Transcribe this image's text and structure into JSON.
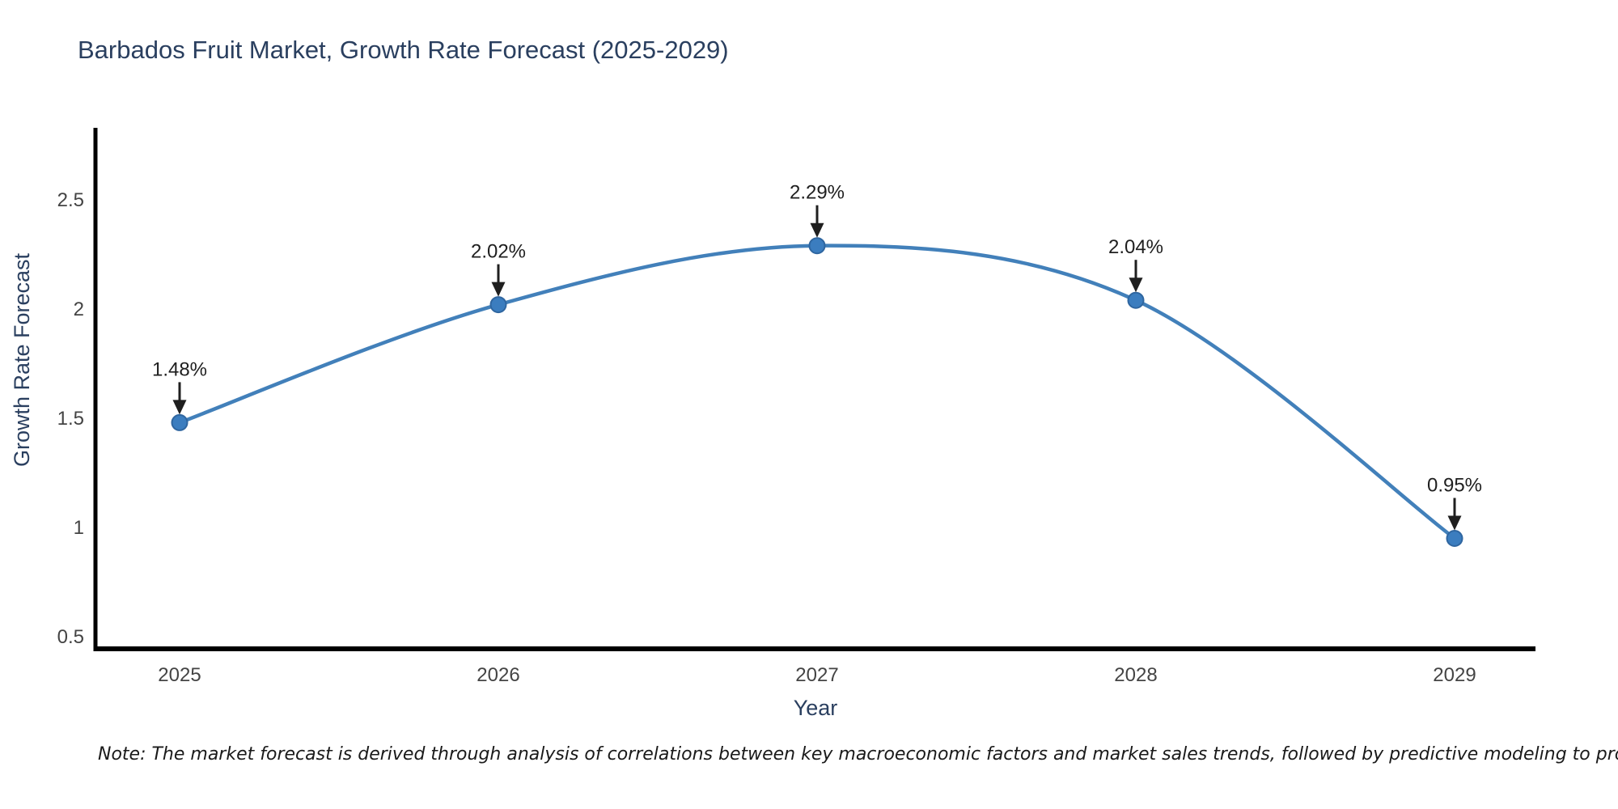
{
  "chart_data": {
    "type": "line",
    "title": "Barbados Fruit Market, Growth Rate Forecast (2025-2029)",
    "xlabel": "Year",
    "ylabel": "Growth Rate Forecast",
    "categories": [
      "2025",
      "2026",
      "2027",
      "2028",
      "2029"
    ],
    "series": [
      {
        "name": "Growth Rate Forecast",
        "values": [
          1.48,
          2.02,
          2.29,
          2.04,
          0.95
        ]
      }
    ],
    "point_labels": [
      "1.48%",
      "2.02%",
      "2.29%",
      "2.04%",
      "0.95%"
    ],
    "ytick_labels": [
      "0.5",
      "1",
      "1.5",
      "2",
      "2.5"
    ],
    "ytick_values": [
      0.5,
      1,
      1.5,
      2,
      2.5
    ],
    "ylim": [
      0.45,
      2.83
    ],
    "grid": false,
    "legend_position": "none",
    "line_color": "#4280ba",
    "marker_fill": "#3b7dbf",
    "marker_edge": "#2f66a0",
    "axis_color": "#000000",
    "title_color": "#2a3f5f",
    "axis_label_color": "#2a3f5f",
    "tick_color": "#444444",
    "annotation_color": "#1f1f1f"
  },
  "note": "Note: The market forecast is derived through analysis of correlations between key macroeconomic factors and market sales trends, followed by predictive modeling to project future sales"
}
